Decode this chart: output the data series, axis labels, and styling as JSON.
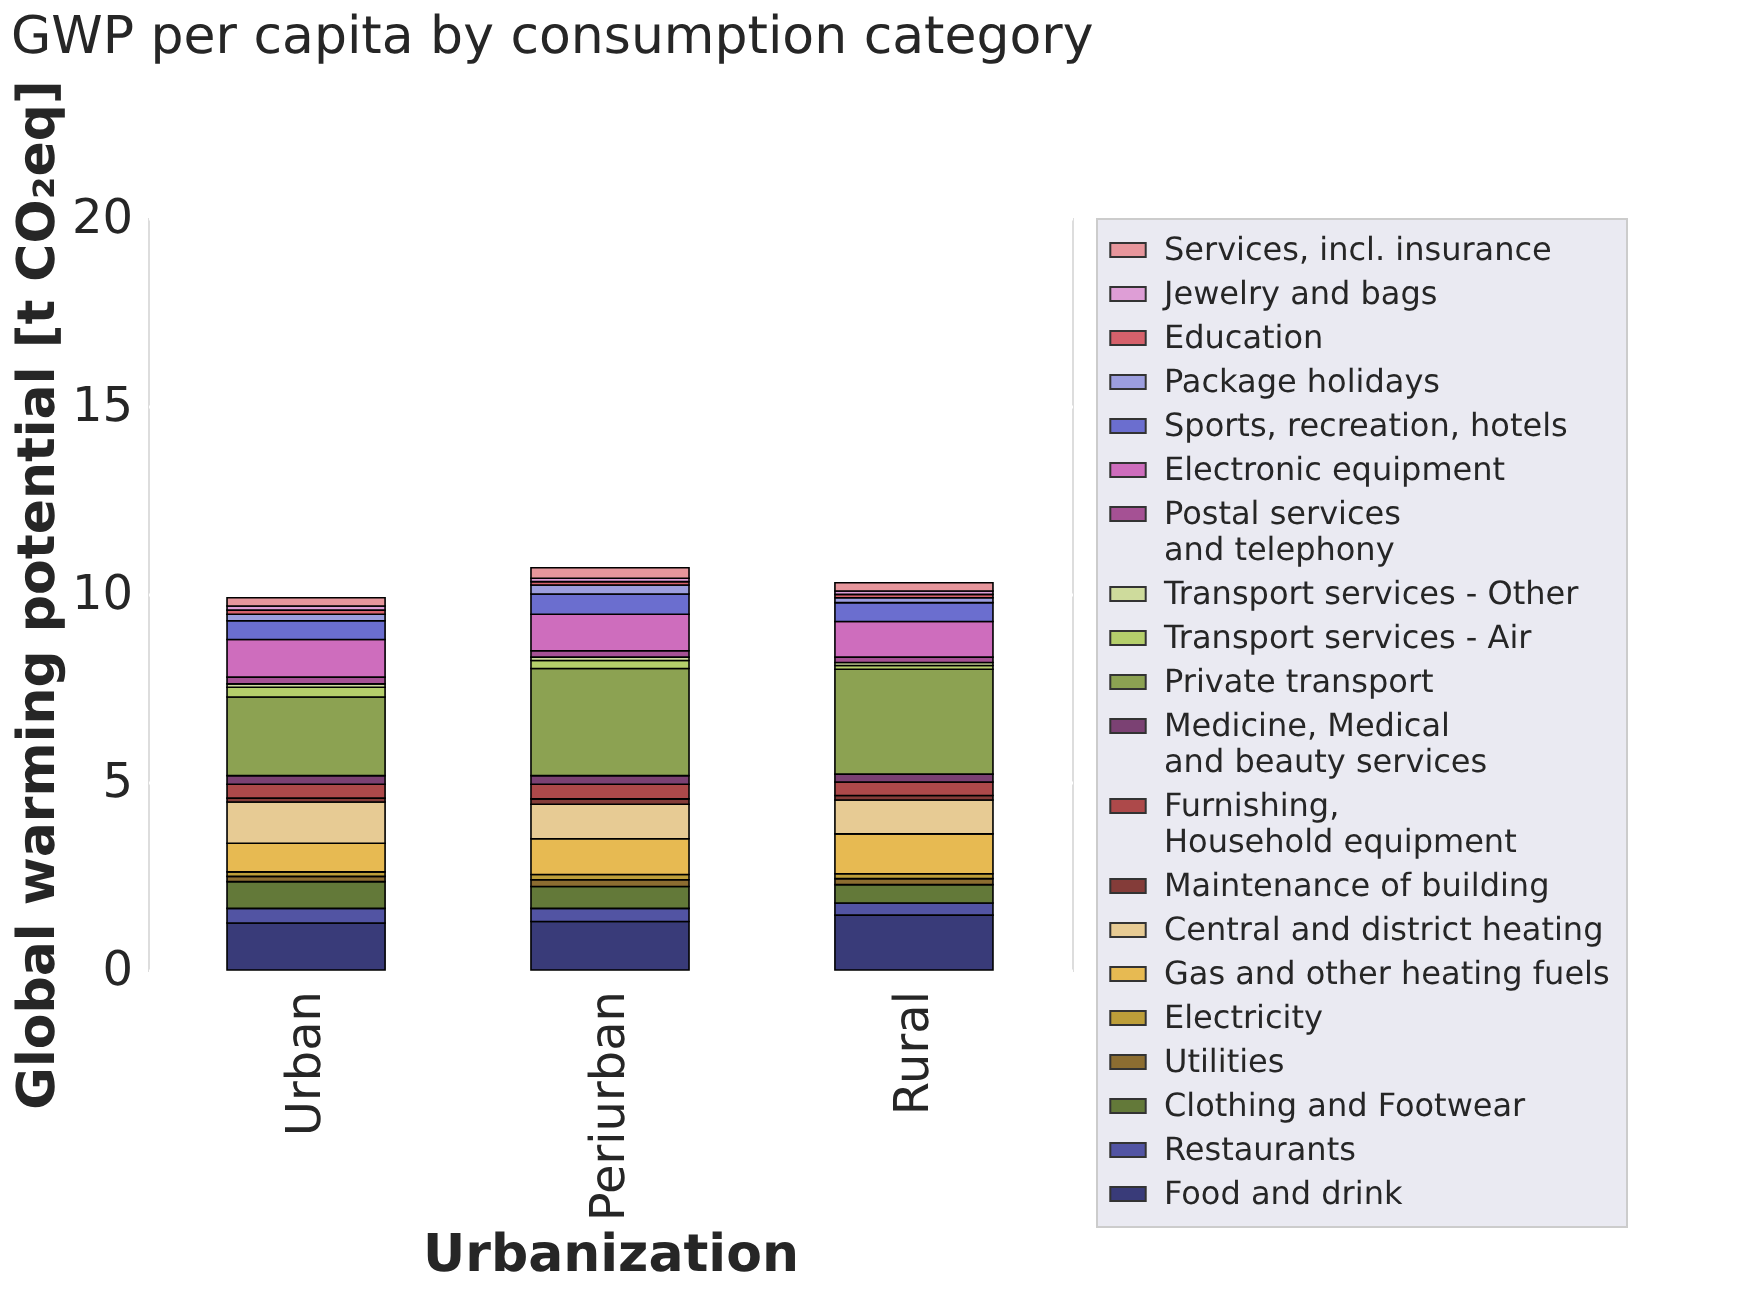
{
  "chart_data": {
    "type": "bar",
    "stacked": true,
    "title": "GWP per capita by consumption category",
    "xlabel": "Urbanization",
    "ylabel": "Global warming potential [t CO₂eq]",
    "categories": [
      "Urban",
      "Periurban",
      "Rural"
    ],
    "ylim": [
      0,
      20
    ],
    "yticks": [
      0,
      5,
      10,
      15,
      20
    ],
    "grid": true,
    "legend": "right",
    "series": [
      {
        "name": "Food and drink",
        "color": "#393b79",
        "values": [
          1.25,
          1.29,
          1.46
        ]
      },
      {
        "name": "Restaurants",
        "color": "#5254a3",
        "values": [
          0.39,
          0.35,
          0.32
        ]
      },
      {
        "name": "Clothing and Footwear",
        "color": "#637939",
        "values": [
          0.71,
          0.58,
          0.49
        ]
      },
      {
        "name": "Utilities",
        "color": "#8c6d31",
        "values": [
          0.14,
          0.18,
          0.16
        ]
      },
      {
        "name": "Electricity",
        "color": "#bd9e39",
        "values": [
          0.12,
          0.14,
          0.13
        ]
      },
      {
        "name": "Gas and other heating fuels",
        "color": "#e7ba52",
        "values": [
          0.76,
          0.95,
          1.06
        ]
      },
      {
        "name": "Central and district heating",
        "color": "#e7cb94",
        "values": [
          1.1,
          0.92,
          0.9
        ]
      },
      {
        "name": "Maintenance of building",
        "color": "#843c39",
        "values": [
          0.1,
          0.14,
          0.12
        ]
      },
      {
        "name": "Furnishing,\nHousehold equipment",
        "color": "#ad494a",
        "values": [
          0.37,
          0.39,
          0.36
        ]
      },
      {
        "name": "Medicine, Medical\nand beauty services",
        "color": "#7b4173",
        "values": [
          0.23,
          0.23,
          0.21
        ]
      },
      {
        "name": "Private transport",
        "color": "#8ca252",
        "values": [
          2.09,
          2.85,
          2.79
        ]
      },
      {
        "name": "Transport services - Air",
        "color": "#b5cf6b",
        "values": [
          0.26,
          0.21,
          0.1
        ]
      },
      {
        "name": "Transport services - Other",
        "color": "#cedb9c",
        "values": [
          0.09,
          0.09,
          0.08
        ]
      },
      {
        "name": "Postal services\nand telephony",
        "color": "#a55194",
        "values": [
          0.18,
          0.17,
          0.14
        ]
      },
      {
        "name": "Electronic equipment",
        "color": "#ce6dbd",
        "values": [
          1.0,
          0.97,
          0.95
        ]
      },
      {
        "name": "Sports, recreation, hotels",
        "color": "#6b6ecf",
        "values": [
          0.5,
          0.54,
          0.5
        ]
      },
      {
        "name": "Package holidays",
        "color": "#9c9ede",
        "values": [
          0.17,
          0.24,
          0.13
        ]
      },
      {
        "name": "Education",
        "color": "#d6616b",
        "values": [
          0.11,
          0.09,
          0.09
        ]
      },
      {
        "name": "Jewelry and bags",
        "color": "#de9ed6",
        "values": [
          0.11,
          0.09,
          0.09
        ]
      },
      {
        "name": "Services, incl. insurance",
        "color": "#e7969c",
        "values": [
          0.22,
          0.28,
          0.22
        ]
      }
    ]
  }
}
